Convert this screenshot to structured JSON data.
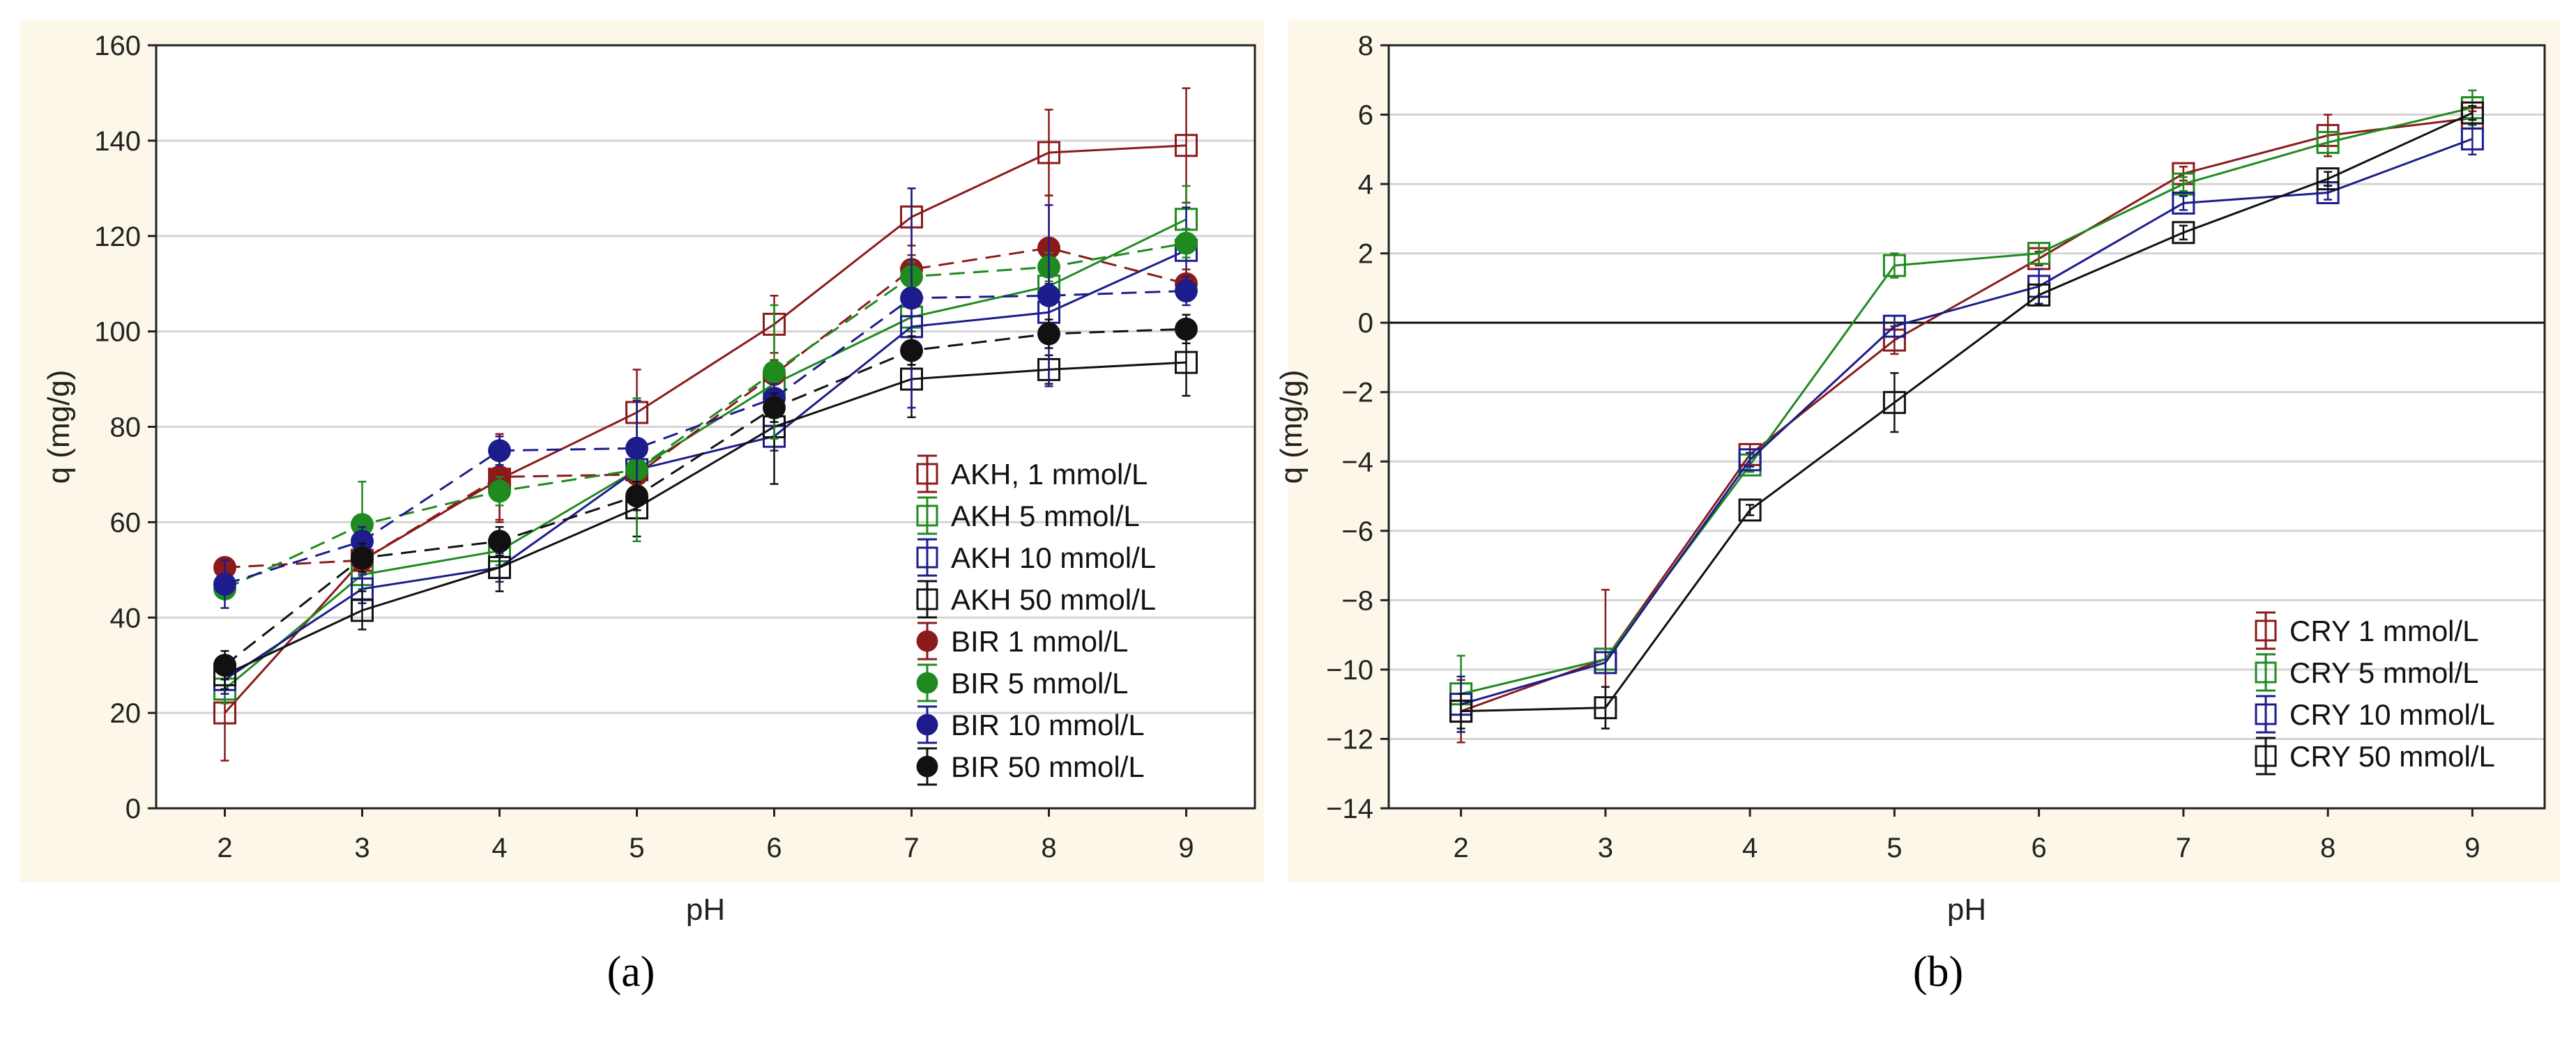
{
  "chart_data": [
    {
      "type": "line",
      "panel_label": "(a)",
      "xlabel": "pH",
      "ylabel": "q (mg/g)",
      "x": [
        2,
        3,
        4,
        5,
        6,
        7,
        8,
        9
      ],
      "xlim": [
        1.5,
        9.5
      ],
      "ylim": [
        0,
        160
      ],
      "yticks": [
        0,
        20,
        40,
        60,
        80,
        100,
        120,
        140,
        160
      ],
      "xticks": [
        2,
        3,
        4,
        5,
        6,
        7,
        8,
        9
      ],
      "grid": true,
      "legend_position": "right",
      "series": [
        {
          "name": "AKH, 1 mmol/L",
          "color": "#8b1a1a",
          "marker": "open-square",
          "dash": false,
          "values": [
            20,
            52,
            69,
            83,
            101.5,
            124,
            137.5,
            139
          ],
          "errors": [
            10,
            3,
            9,
            9,
            6,
            6,
            9,
            12
          ]
        },
        {
          "name": "AKH 5 mmol/L",
          "color": "#1f8a1f",
          "marker": "open-square",
          "dash": false,
          "values": [
            25,
            49,
            54,
            71,
            89,
            103,
            109.5,
            123.5
          ],
          "errors": [
            3,
            3,
            3,
            3,
            3,
            3,
            3,
            7
          ]
        },
        {
          "name": "AKH 10 mmol/L",
          "color": "#1c1c8c",
          "marker": "open-square",
          "dash": false,
          "values": [
            27,
            46,
            50.5,
            71,
            78,
            101,
            104,
            117
          ],
          "errors": [
            3,
            3,
            3,
            3,
            3,
            8,
            6,
            9
          ]
        },
        {
          "name": "AKH 50 mmol/L",
          "color": "#111111",
          "marker": "open-square",
          "dash": false,
          "values": [
            28,
            41.5,
            50.5,
            63,
            80,
            90,
            92,
            93.5
          ],
          "errors": [
            3,
            4,
            5,
            6,
            12,
            8,
            3,
            7
          ]
        },
        {
          "name": "BIR 1 mmol/L",
          "color": "#8b1a1a",
          "marker": "filled-circle",
          "dash": true,
          "values": [
            50.5,
            52,
            69.5,
            70,
            91,
            113,
            117.5,
            110
          ],
          "errors": [
            2,
            2,
            9,
            3,
            3,
            3,
            11,
            3
          ]
        },
        {
          "name": "BIR 5 mmol/L",
          "color": "#1f8a1f",
          "marker": "filled-circle",
          "dash": true,
          "values": [
            46,
            59.5,
            66.5,
            71,
            91.5,
            111.5,
            113.5,
            118.5
          ],
          "errors": [
            2,
            9,
            3,
            15,
            14,
            3,
            3,
            3
          ]
        },
        {
          "name": "BIR 10 mmol/L",
          "color": "#1c1c8c",
          "marker": "filled-circle",
          "dash": true,
          "values": [
            47,
            56,
            75,
            75.5,
            86,
            107,
            107.5,
            108.5
          ],
          "errors": [
            5,
            3,
            3,
            10,
            3,
            23,
            19,
            3
          ]
        },
        {
          "name": "BIR 50 mmol/L",
          "color": "#111111",
          "marker": "filled-circle",
          "dash": true,
          "values": [
            30,
            52.5,
            56,
            65.5,
            84,
            96,
            99.5,
            100.5
          ],
          "errors": [
            3,
            3,
            3,
            3,
            3,
            3,
            3,
            3
          ]
        }
      ]
    },
    {
      "type": "line",
      "panel_label": "(b)",
      "xlabel": "pH",
      "ylabel": "q (mg/g)",
      "x": [
        2,
        3,
        4,
        5,
        6,
        7,
        8,
        9
      ],
      "xlim": [
        1.5,
        9.5
      ],
      "ylim": [
        -14,
        8
      ],
      "yticks": [
        -14,
        -12,
        -10,
        -8,
        -6,
        -4,
        -2,
        0,
        2,
        4,
        6,
        8
      ],
      "xticks": [
        2,
        3,
        4,
        5,
        6,
        7,
        8,
        9
      ],
      "grid": true,
      "zero_line": true,
      "legend_position": "bottom-right",
      "series": [
        {
          "name": "CRY 1 mmol/L",
          "color": "#8b1a1a",
          "marker": "open-square",
          "values": [
            -11.2,
            -9.7,
            -3.8,
            -0.5,
            1.85,
            4.3,
            5.4,
            5.9
          ],
          "errors": [
            0.9,
            2.0,
            0.3,
            0.4,
            0.2,
            0.2,
            0.6,
            0.2
          ]
        },
        {
          "name": "CRY 5 mmol/L",
          "color": "#1f8a1f",
          "marker": "open-square",
          "values": [
            -10.7,
            -9.7,
            -4.1,
            1.65,
            2.0,
            4.0,
            5.2,
            6.2
          ],
          "errors": [
            1.1,
            0.3,
            0.2,
            0.35,
            0.3,
            0.2,
            0.3,
            0.5
          ]
        },
        {
          "name": "CRY 10 mmol/L",
          "color": "#1c1c8c",
          "marker": "open-square",
          "values": [
            -11.0,
            -9.8,
            -3.95,
            -0.1,
            1.05,
            3.45,
            3.75,
            5.3
          ],
          "errors": [
            0.8,
            0.3,
            0.2,
            0.3,
            0.5,
            0.2,
            0.2,
            0.45
          ]
        },
        {
          "name": "CRY 50 mmol/L",
          "color": "#111111",
          "marker": "open-square",
          "values": [
            -11.2,
            -11.1,
            -5.4,
            -2.3,
            0.8,
            2.6,
            4.15,
            6.05
          ],
          "errors": [
            0.5,
            0.6,
            0.15,
            0.85,
            0.3,
            0.2,
            0.2,
            0.2
          ]
        }
      ]
    }
  ]
}
